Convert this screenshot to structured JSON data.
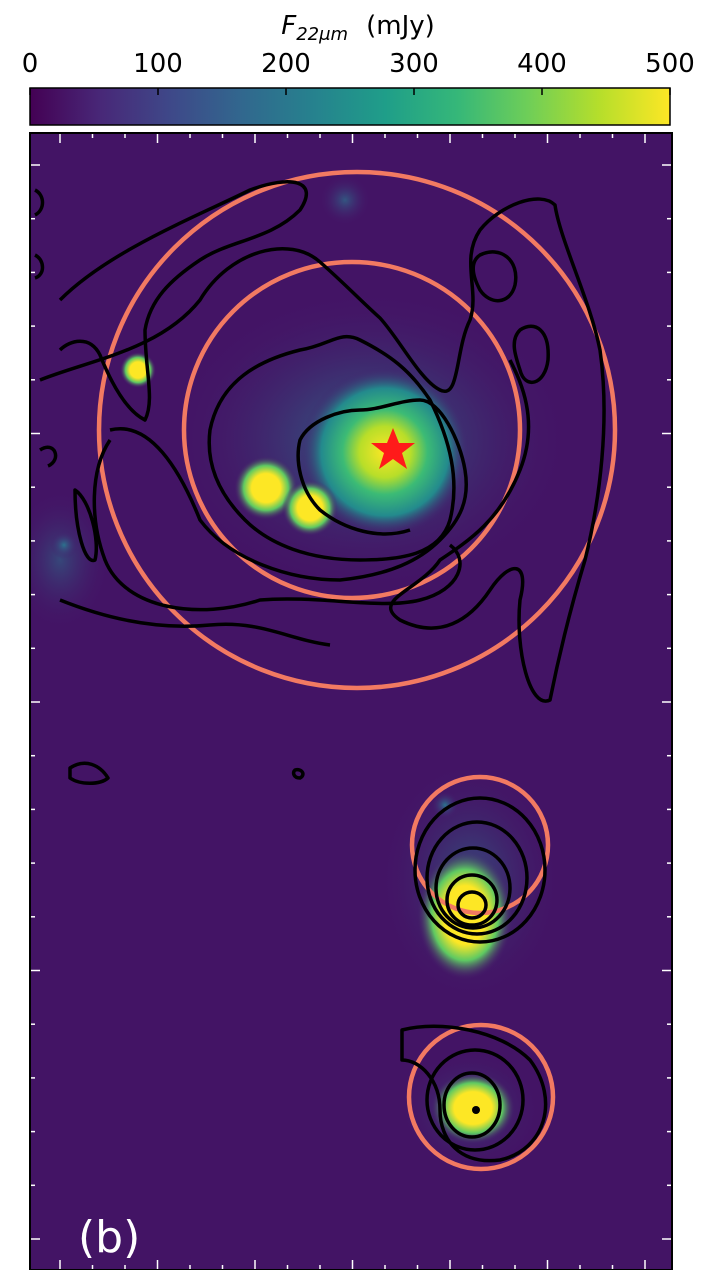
{
  "chart_data": {
    "type": "image",
    "colorbar": {
      "label_symbol": "F",
      "label_subscript": "22μm",
      "label_unit": "(mJy)",
      "clim": [
        0,
        500
      ],
      "ticks": [
        0,
        100,
        200,
        300,
        400,
        500
      ],
      "colormap": "viridis"
    },
    "panel_label": "(b)"
  }
}
